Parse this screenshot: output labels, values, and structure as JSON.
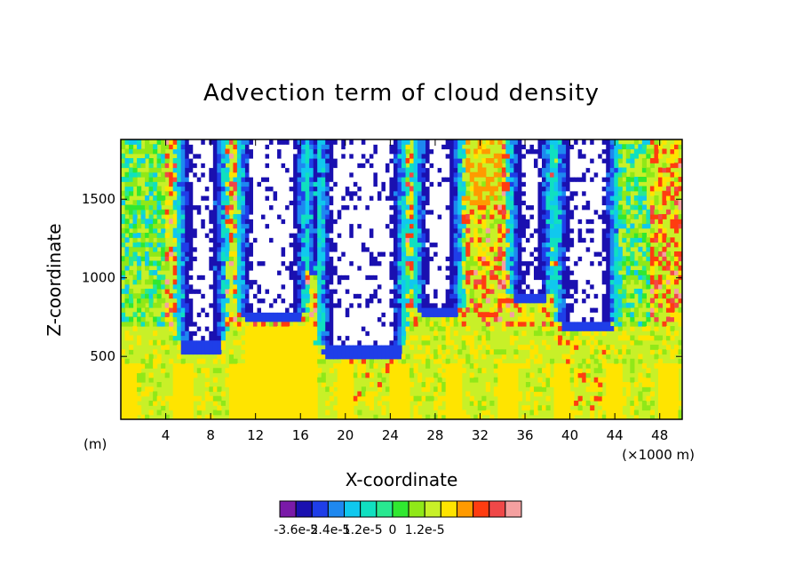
{
  "chart_data": {
    "type": "heatmap",
    "title": "Advection term of cloud density",
    "xlabel": "X-coordinate",
    "ylabel": "Z-coordinate",
    "x_unit_left": "(m)",
    "x_unit_right": "(×1000 m)",
    "xlim": [
      0,
      50
    ],
    "ylim": [
      100,
      1880
    ],
    "x_ticks": [
      4,
      8,
      12,
      16,
      20,
      24,
      28,
      32,
      36,
      40,
      44,
      48
    ],
    "x_tick_labels": [
      "4",
      "8",
      "12",
      "16",
      "20",
      "24",
      "28",
      "32",
      "36",
      "40",
      "44",
      "48"
    ],
    "y_ticks": [
      500,
      1000,
      1500
    ],
    "y_tick_labels": [
      "500",
      "1000",
      "1500"
    ],
    "grid": false,
    "colorbar": {
      "colors": [
        "#7a1aa8",
        "#1a10b0",
        "#1f3ee8",
        "#1e88f0",
        "#10c8ee",
        "#10e0c0",
        "#28e890",
        "#30e830",
        "#90e818",
        "#c8f028",
        "#ffe400",
        "#ff9a00",
        "#ff3c10",
        "#f04848",
        "#f4a0a0"
      ],
      "tick_labels": [
        "-3.6e-5",
        "-2.4e-5",
        "-1.2e-5",
        "0",
        "1.2e-5"
      ],
      "tick_values": [
        -3.6e-05,
        -2.4e-05,
        -1.2e-05,
        0,
        1.2e-05
      ],
      "boundary_step": 6e-06,
      "lowest_boundary": -4.2e-05
    },
    "undefined_color": "#ffffff"
  }
}
